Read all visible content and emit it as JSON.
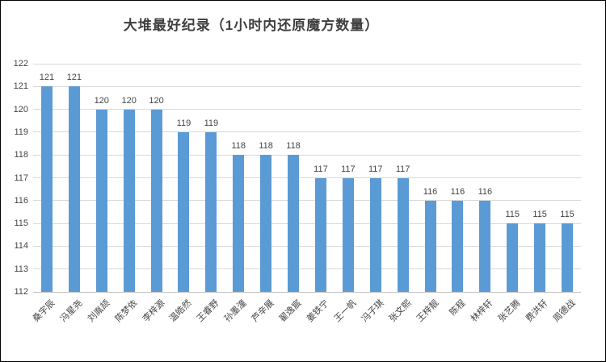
{
  "title": "大堆最好纪录（1小时内还原魔方数量）",
  "colors": {
    "bar": "#5B9BD5",
    "gridline": "#D9D9D9",
    "axis_line": "#BFBFBF",
    "text": "#444444",
    "title_text": "#3F3F3F",
    "frame_border": "#000000",
    "background": "#FFFFFF"
  },
  "chart_data": {
    "type": "bar",
    "title": "大堆最好纪录（1小时内还原魔方数量）",
    "categories": [
      "桑宇辰",
      "冯星尧",
      "刘胤颉",
      "陈梦依",
      "李梓源",
      "温皓然",
      "王睿野",
      "孙墨潼",
      "芦辛展",
      "翟逸宸",
      "姜铁宁",
      "王一帆",
      "冯子琪",
      "张文熙",
      "王梓靓",
      "陈程",
      "林梓轩",
      "张艺腾",
      "费洪轩",
      "周德战"
    ],
    "values": [
      121,
      121,
      120,
      120,
      120,
      119,
      119,
      118,
      118,
      118,
      117,
      117,
      117,
      117,
      116,
      116,
      116,
      115,
      115,
      115
    ],
    "data_labels": [
      121,
      121,
      120,
      120,
      120,
      119,
      119,
      118,
      118,
      118,
      117,
      117,
      117,
      117,
      116,
      116,
      116,
      115,
      115,
      115
    ],
    "yticks": [
      112,
      113,
      114,
      115,
      116,
      117,
      118,
      119,
      120,
      121,
      122
    ],
    "ylim": [
      112,
      122
    ],
    "ytick_step": 1,
    "xlabel": "",
    "ylabel": "",
    "grid": true,
    "legend": false,
    "x_label_rotation_deg": -45
  }
}
